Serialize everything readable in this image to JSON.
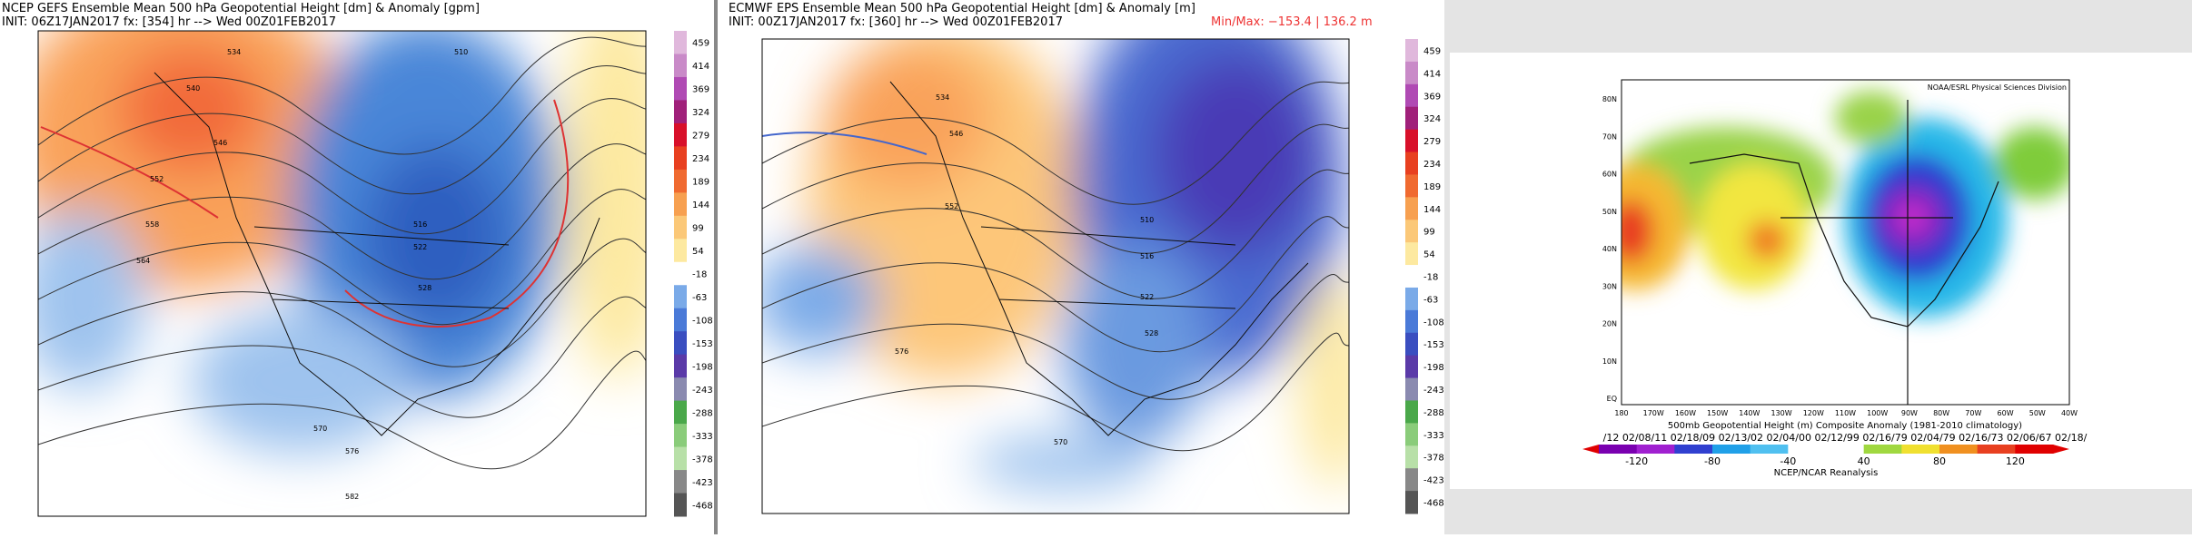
{
  "panels": [
    {
      "title": "NCEP GEFS Ensemble Mean 500 hPa Geopotential Height [dm] & Anomaly [gpm]",
      "init": "INIT: 06Z17JAN2017 fx: [354] hr --> Wed 00Z01FEB2017",
      "contour_labels": [
        "534",
        "540",
        "546",
        "552",
        "558",
        "564",
        "570",
        "576",
        "582",
        "510",
        "516",
        "522",
        "528"
      ],
      "colorbar": [
        "459",
        "414",
        "369",
        "324",
        "279",
        "234",
        "189",
        "144",
        "99",
        "54",
        "-18",
        "-63",
        "-108",
        "-153",
        "-198",
        "-243",
        "-288",
        "-333",
        "-378",
        "-423",
        "-468"
      ]
    },
    {
      "title": "ECMWF EPS Ensemble Mean 500 hPa Geopotential Height [dm] & Anomaly [m]",
      "init": "INIT: 00Z17JAN2017 fx: [360] hr --> Wed 00Z01FEB2017",
      "minmax": "Min/Max: −153.4 | 136.2 m",
      "contour_labels": [
        "534",
        "546",
        "552",
        "576",
        "570",
        "510",
        "516",
        "522",
        "528"
      ],
      "colorbar": [
        "459",
        "414",
        "369",
        "324",
        "279",
        "234",
        "189",
        "144",
        "99",
        "54",
        "-18",
        "-63",
        "-108",
        "-153",
        "-198",
        "-243",
        "-288",
        "-333",
        "-378",
        "-423",
        "-468"
      ]
    },
    {
      "credit": "NOAA/ESRL Physical Sciences Division",
      "title": "500mb Geopotential Height (m) Composite Anomaly (1981-2010 climatology)",
      "dates": "/12 02/08/11 02/18/09 02/13/02 02/04/00 02/12/99 02/16/79 02/04/79 02/16/73 02/06/67 02/18/",
      "source": "NCEP/NCAR Reanalysis",
      "lat_labels": [
        "80N",
        "70N",
        "60N",
        "50N",
        "40N",
        "30N",
        "20N",
        "10N",
        "EQ"
      ],
      "lon_labels": [
        "180",
        "170W",
        "160W",
        "150W",
        "140W",
        "130W",
        "120W",
        "110W",
        "100W",
        "90W",
        "80W",
        "70W",
        "60W",
        "50W",
        "40W"
      ],
      "colorbar": [
        "-120",
        "-80",
        "-40",
        "40",
        "80",
        "120"
      ]
    }
  ]
}
